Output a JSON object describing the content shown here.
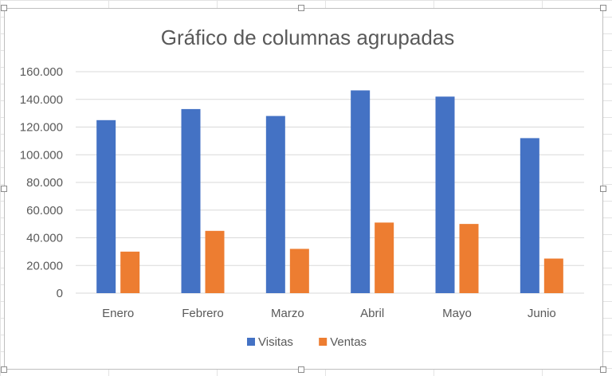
{
  "chart_data": {
    "type": "bar",
    "title": "Gráfico de columnas agrupadas",
    "categories": [
      "Enero",
      "Febrero",
      "Marzo",
      "Abril",
      "Mayo",
      "Junio"
    ],
    "series": [
      {
        "name": "Visitas",
        "color": "#4472C4",
        "values": [
          125000,
          133000,
          128000,
          146500,
          142000,
          112000
        ]
      },
      {
        "name": "Ventas",
        "color": "#ED7D31",
        "values": [
          30000,
          45000,
          32000,
          51000,
          50000,
          25000
        ]
      }
    ],
    "ylim": [
      0,
      160000
    ],
    "y_ticks": [
      0,
      20000,
      40000,
      60000,
      80000,
      100000,
      120000,
      140000,
      160000
    ],
    "y_tick_labels": [
      "0",
      "20.000",
      "40.000",
      "60.000",
      "80.000",
      "100.000",
      "120.000",
      "140.000",
      "160.000"
    ],
    "grid": true,
    "legend_position": "bottom",
    "gridline_color": "#d9d9d9"
  }
}
